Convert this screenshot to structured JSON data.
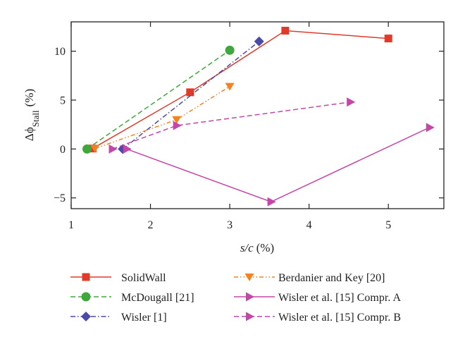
{
  "chart_data": {
    "type": "line",
    "title": "",
    "xlabel_var": "s/c",
    "xlabel_unit": "(%)",
    "ylabel_var": "Δϕ",
    "ylabel_sub": "Stall",
    "ylabel_unit": "(%)",
    "xlim": [
      1,
      5.7
    ],
    "ylim": [
      -6.1,
      13
    ],
    "xticks": [
      1,
      2,
      3,
      4,
      5
    ],
    "yticks": [
      -5,
      0,
      5,
      10
    ],
    "xtick_labels": [
      "1",
      "2",
      "3",
      "4",
      "5"
    ],
    "ytick_labels": [
      "−5",
      "0",
      "5",
      "10"
    ],
    "grid": false,
    "legend_position": "below",
    "series": [
      {
        "name": "SolidWall",
        "color": "#e03a2a",
        "dash": "solid",
        "marker": "square",
        "x": [
          1.27,
          2.5,
          3.7,
          5.0
        ],
        "y": [
          0.05,
          5.8,
          12.1,
          11.3
        ]
      },
      {
        "name": "McDougall [21]",
        "color": "#3fa83c",
        "dash": "dash",
        "marker": "circle",
        "x": [
          1.2,
          3.0
        ],
        "y": [
          0.0,
          10.1
        ]
      },
      {
        "name": "Wisler [1]",
        "color": "#4a4aa8",
        "dash": "dashdot",
        "marker": "diamond",
        "x": [
          1.65,
          3.37
        ],
        "y": [
          0.0,
          11.0
        ]
      },
      {
        "name": "Berdanier and Key [20]",
        "color": "#f58220",
        "dash": "dashdotdot",
        "marker": "triangle-down",
        "x": [
          1.3,
          2.33,
          3.0
        ],
        "y": [
          0.05,
          3.0,
          6.4
        ]
      },
      {
        "name": "Wisler et al. [15] Compr. A",
        "color": "#c446a8",
        "dash": "solid",
        "marker": "triangle-right",
        "x": [
          1.7,
          3.52,
          5.52
        ],
        "y": [
          0.0,
          -5.4,
          2.2
        ]
      },
      {
        "name": "Wisler et al. [15] Compr. B",
        "color": "#c446a8",
        "dash": "dash",
        "marker": "triangle-right",
        "x": [
          1.52,
          2.33,
          4.52
        ],
        "y": [
          0.0,
          2.4,
          4.8
        ]
      }
    ]
  }
}
